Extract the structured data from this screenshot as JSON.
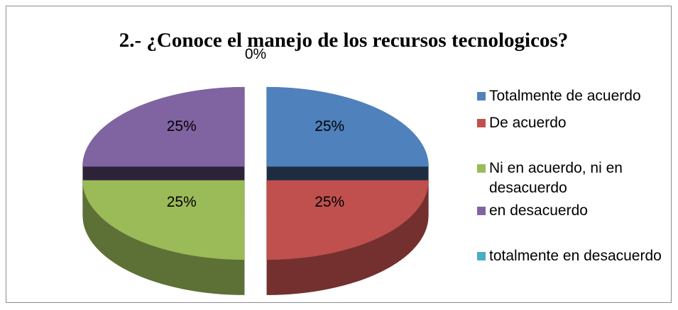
{
  "chart_data": {
    "type": "pie",
    "title": "2.- ¿Conoce el manejo de los recursos tecnologicos?",
    "categories": [
      "Totalmente de acuerdo",
      "De acuerdo",
      "Ni en acuerdo, ni en desacuerdo",
      "en desacuerdo",
      "totalmente en desacuerdo"
    ],
    "values": [
      25,
      25,
      25,
      25,
      0
    ],
    "value_labels": [
      "25%",
      "25%",
      "25%",
      "25%",
      "0%"
    ],
    "colors": [
      "#4f81bd",
      "#c0504d",
      "#9bbb59",
      "#8064a2",
      "#4bacc6"
    ],
    "legend": "right"
  }
}
